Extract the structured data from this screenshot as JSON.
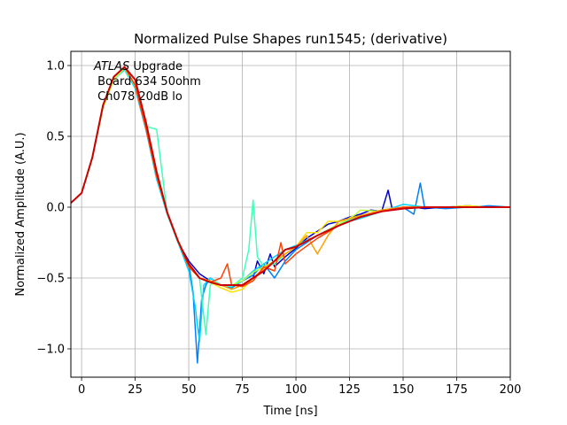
{
  "chart_data": {
    "type": "line",
    "title": "Normalized Pulse Shapes run1545; (derivative)",
    "xlabel": "Time [ns]",
    "ylabel": "Normalized Amplitude (A.U.)",
    "xlim": [
      -5,
      200
    ],
    "ylim": [
      -1.2,
      1.1
    ],
    "xticks": [
      0,
      25,
      50,
      75,
      100,
      125,
      150,
      175,
      200
    ],
    "yticks": [
      -1.0,
      -0.5,
      0.0,
      0.5,
      1.0
    ],
    "xtick_labels": [
      "0",
      "25",
      "50",
      "75",
      "100",
      "125",
      "150",
      "175",
      "200"
    ],
    "ytick_labels": [
      "−1.0",
      "−0.5",
      "0.0",
      "0.5",
      "1.0"
    ],
    "grid": true,
    "annotation": {
      "line1_italic": "ATLAS",
      "line1_rest": " Upgrade",
      "line2": " Board 634 50ohm",
      "line3": " Ch078 20dB lo"
    },
    "series": [
      {
        "color": "#0000cc",
        "x": [
          -5,
          0,
          5,
          10,
          15,
          20,
          25,
          30,
          35,
          40,
          45,
          50,
          55,
          60,
          65,
          70,
          75,
          80,
          82,
          85,
          88,
          90,
          95,
          100,
          105,
          110,
          115,
          120,
          125,
          130,
          135,
          140,
          143,
          145,
          150,
          155,
          160,
          170,
          180,
          190,
          200
        ],
        "y": [
          0.03,
          0.1,
          0.35,
          0.72,
          0.92,
          0.99,
          0.84,
          0.55,
          0.24,
          -0.05,
          -0.25,
          -0.38,
          -0.47,
          -0.52,
          -0.55,
          -0.55,
          -0.55,
          -0.5,
          -0.38,
          -0.47,
          -0.33,
          -0.42,
          -0.35,
          -0.29,
          -0.22,
          -0.17,
          -0.12,
          -0.1,
          -0.07,
          -0.05,
          -0.02,
          -0.03,
          0.12,
          -0.02,
          -0.01,
          0.0,
          -0.01,
          0.0,
          0.01,
          0.0,
          0.0
        ]
      },
      {
        "color": "#0080ff",
        "x": [
          -5,
          0,
          5,
          10,
          15,
          20,
          25,
          30,
          35,
          40,
          45,
          50,
          52,
          54,
          56,
          58,
          60,
          65,
          70,
          75,
          80,
          85,
          90,
          95,
          100,
          110,
          120,
          130,
          140,
          150,
          155,
          158,
          160,
          170,
          180,
          190,
          200
        ],
        "y": [
          0.03,
          0.1,
          0.35,
          0.72,
          0.9,
          0.98,
          0.85,
          0.55,
          0.2,
          -0.05,
          -0.25,
          -0.4,
          -0.6,
          -1.1,
          -0.65,
          -0.55,
          -0.5,
          -0.55,
          -0.57,
          -0.52,
          -0.48,
          -0.4,
          -0.5,
          -0.38,
          -0.3,
          -0.2,
          -0.12,
          -0.07,
          -0.02,
          0.0,
          -0.05,
          0.17,
          0.0,
          -0.01,
          0.0,
          0.01,
          0.0
        ]
      },
      {
        "color": "#00d4ff",
        "x": [
          -5,
          0,
          5,
          10,
          15,
          20,
          25,
          30,
          35,
          40,
          45,
          50,
          53,
          55,
          57,
          60,
          65,
          70,
          75,
          80,
          85,
          90,
          95,
          100,
          110,
          120,
          130,
          140,
          150,
          160,
          170,
          180,
          190,
          200
        ],
        "y": [
          0.03,
          0.1,
          0.35,
          0.7,
          0.9,
          0.97,
          0.84,
          0.55,
          0.2,
          -0.05,
          -0.25,
          -0.45,
          -0.7,
          -0.95,
          -0.55,
          -0.5,
          -0.55,
          -0.56,
          -0.52,
          -0.45,
          -0.4,
          -0.35,
          -0.3,
          -0.27,
          -0.2,
          -0.12,
          -0.08,
          -0.03,
          0.02,
          0.0,
          0.0,
          0.01,
          0.0,
          0.0
        ]
      },
      {
        "color": "#40ffb8",
        "x": [
          -5,
          0,
          5,
          10,
          15,
          20,
          25,
          30,
          35,
          40,
          45,
          50,
          55,
          58,
          60,
          62,
          65,
          70,
          75,
          78,
          80,
          82,
          85,
          90,
          95,
          100,
          110,
          120,
          130,
          140,
          150,
          160,
          170,
          180,
          190,
          200
        ],
        "y": [
          0.03,
          0.1,
          0.36,
          0.72,
          0.92,
          0.98,
          0.85,
          0.57,
          0.55,
          -0.05,
          -0.25,
          -0.4,
          -0.5,
          -0.9,
          -0.55,
          -0.52,
          -0.55,
          -0.56,
          -0.5,
          -0.3,
          0.05,
          -0.35,
          -0.42,
          -0.4,
          -0.33,
          -0.28,
          -0.2,
          -0.12,
          -0.06,
          -0.03,
          0.0,
          0.0,
          0.0,
          0.0,
          0.0,
          0.0
        ]
      },
      {
        "color": "#b8ff40",
        "x": [
          -5,
          0,
          5,
          10,
          15,
          20,
          25,
          30,
          35,
          40,
          45,
          50,
          55,
          60,
          65,
          70,
          75,
          80,
          85,
          90,
          95,
          100,
          110,
          120,
          128,
          130,
          140,
          150,
          160,
          170,
          180,
          190,
          200
        ],
        "y": [
          0.03,
          0.1,
          0.35,
          0.7,
          0.9,
          0.98,
          0.86,
          0.56,
          0.22,
          -0.04,
          -0.24,
          -0.42,
          -0.5,
          -0.53,
          -0.55,
          -0.55,
          -0.52,
          -0.46,
          -0.42,
          -0.38,
          -0.33,
          -0.28,
          -0.2,
          -0.12,
          -0.05,
          -0.02,
          -0.03,
          0.0,
          0.0,
          0.0,
          0.0,
          0.0,
          0.0
        ]
      },
      {
        "color": "#ffe000",
        "x": [
          -5,
          0,
          5,
          10,
          15,
          20,
          25,
          30,
          35,
          40,
          45,
          50,
          55,
          60,
          65,
          70,
          75,
          80,
          85,
          90,
          95,
          100,
          105,
          110,
          115,
          120,
          130,
          140,
          150,
          160,
          170,
          180,
          190,
          200
        ],
        "y": [
          0.03,
          0.1,
          0.35,
          0.72,
          0.92,
          0.99,
          0.86,
          0.56,
          0.22,
          -0.04,
          -0.24,
          -0.42,
          -0.5,
          -0.53,
          -0.57,
          -0.6,
          -0.58,
          -0.5,
          -0.44,
          -0.38,
          -0.3,
          -0.28,
          -0.18,
          -0.18,
          -0.1,
          -0.1,
          -0.06,
          -0.02,
          0.0,
          0.0,
          0.0,
          0.01,
          0.0,
          0.0
        ]
      },
      {
        "color": "#ffa000",
        "x": [
          -5,
          0,
          5,
          10,
          15,
          20,
          25,
          30,
          35,
          40,
          45,
          50,
          55,
          60,
          65,
          70,
          75,
          80,
          85,
          90,
          95,
          100,
          105,
          110,
          115,
          120,
          130,
          140,
          150,
          160,
          170,
          180,
          190,
          200
        ],
        "y": [
          0.03,
          0.1,
          0.35,
          0.72,
          0.92,
          0.99,
          0.86,
          0.56,
          0.22,
          -0.04,
          -0.24,
          -0.42,
          -0.5,
          -0.52,
          -0.55,
          -0.58,
          -0.55,
          -0.5,
          -0.43,
          -0.38,
          -0.33,
          -0.28,
          -0.2,
          -0.33,
          -0.2,
          -0.1,
          -0.06,
          -0.02,
          0.0,
          0.0,
          0.0,
          0.0,
          0.0,
          0.0
        ]
      },
      {
        "color": "#ff4000",
        "x": [
          -5,
          0,
          5,
          10,
          15,
          20,
          25,
          30,
          35,
          40,
          45,
          50,
          55,
          60,
          65,
          68,
          70,
          75,
          80,
          85,
          90,
          93,
          95,
          100,
          110,
          120,
          130,
          140,
          150,
          160,
          170,
          180,
          190,
          200
        ],
        "y": [
          0.03,
          0.1,
          0.35,
          0.72,
          0.92,
          0.99,
          0.86,
          0.56,
          0.22,
          -0.04,
          -0.24,
          -0.42,
          -0.5,
          -0.53,
          -0.5,
          -0.4,
          -0.55,
          -0.56,
          -0.52,
          -0.42,
          -0.45,
          -0.25,
          -0.4,
          -0.33,
          -0.22,
          -0.13,
          -0.07,
          -0.03,
          0.0,
          0.0,
          0.0,
          0.0,
          0.0,
          0.0
        ]
      },
      {
        "color": "#cc0000",
        "x": [
          -5,
          0,
          5,
          10,
          15,
          20,
          25,
          30,
          35,
          40,
          45,
          50,
          55,
          60,
          65,
          70,
          75,
          80,
          85,
          90,
          95,
          100,
          110,
          120,
          130,
          140,
          150,
          160,
          170,
          180,
          190,
          200
        ],
        "y": [
          0.03,
          0.1,
          0.35,
          0.72,
          0.92,
          0.99,
          0.9,
          0.6,
          0.25,
          -0.04,
          -0.24,
          -0.4,
          -0.5,
          -0.53,
          -0.55,
          -0.55,
          -0.55,
          -0.5,
          -0.45,
          -0.38,
          -0.3,
          -0.28,
          -0.2,
          -0.13,
          -0.07,
          -0.03,
          -0.01,
          0.0,
          0.0,
          0.0,
          0.0,
          0.0
        ]
      }
    ]
  }
}
